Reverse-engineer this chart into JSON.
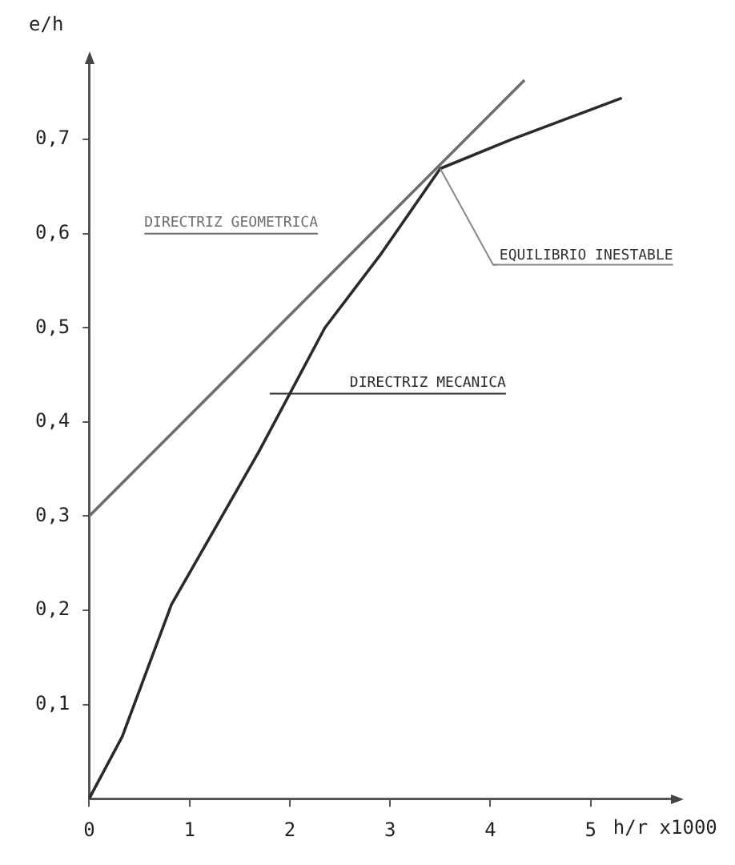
{
  "chart_data": {
    "type": "line",
    "xlabel": "h/r x1000",
    "ylabel": "e/h",
    "xlim": [
      0,
      5.8
    ],
    "xticks": [
      0,
      1,
      2,
      3,
      4,
      5
    ],
    "ylim": [
      0,
      0.78
    ],
    "yticks": [
      {
        "value": 0.1,
        "label": "0,1"
      },
      {
        "value": 0.2,
        "label": "0,2"
      },
      {
        "value": 0.3,
        "label": "0,3"
      },
      {
        "value": 0.4,
        "label": "0,4"
      },
      {
        "value": 0.5,
        "label": "0,5"
      },
      {
        "value": 0.6,
        "label": "0,6"
      },
      {
        "value": 0.7,
        "label": "0,7"
      }
    ],
    "grid": false,
    "legend": false,
    "marker": "none",
    "line_style": "solid",
    "series": [
      {
        "name": "DIRECTRIZ GEOMETRICA",
        "color": "#6e6e6e",
        "x": [
          0,
          4.34
        ],
        "values": [
          0.3,
          0.763
        ]
      },
      {
        "name": "DIRECTRIZ MECANICA",
        "color": "#2a2a2a",
        "x": [
          0,
          0.33,
          0.82,
          1.69,
          2.35,
          2.9,
          3.5,
          4.21,
          5.31
        ],
        "values": [
          0,
          0.066,
          0.206,
          0.368,
          0.5,
          0.577,
          0.669,
          0.7,
          0.744
        ]
      }
    ],
    "annotations": [
      {
        "text": "EQUILIBRIO INESTABLE",
        "x": 3.5,
        "y": 0.669
      }
    ]
  }
}
